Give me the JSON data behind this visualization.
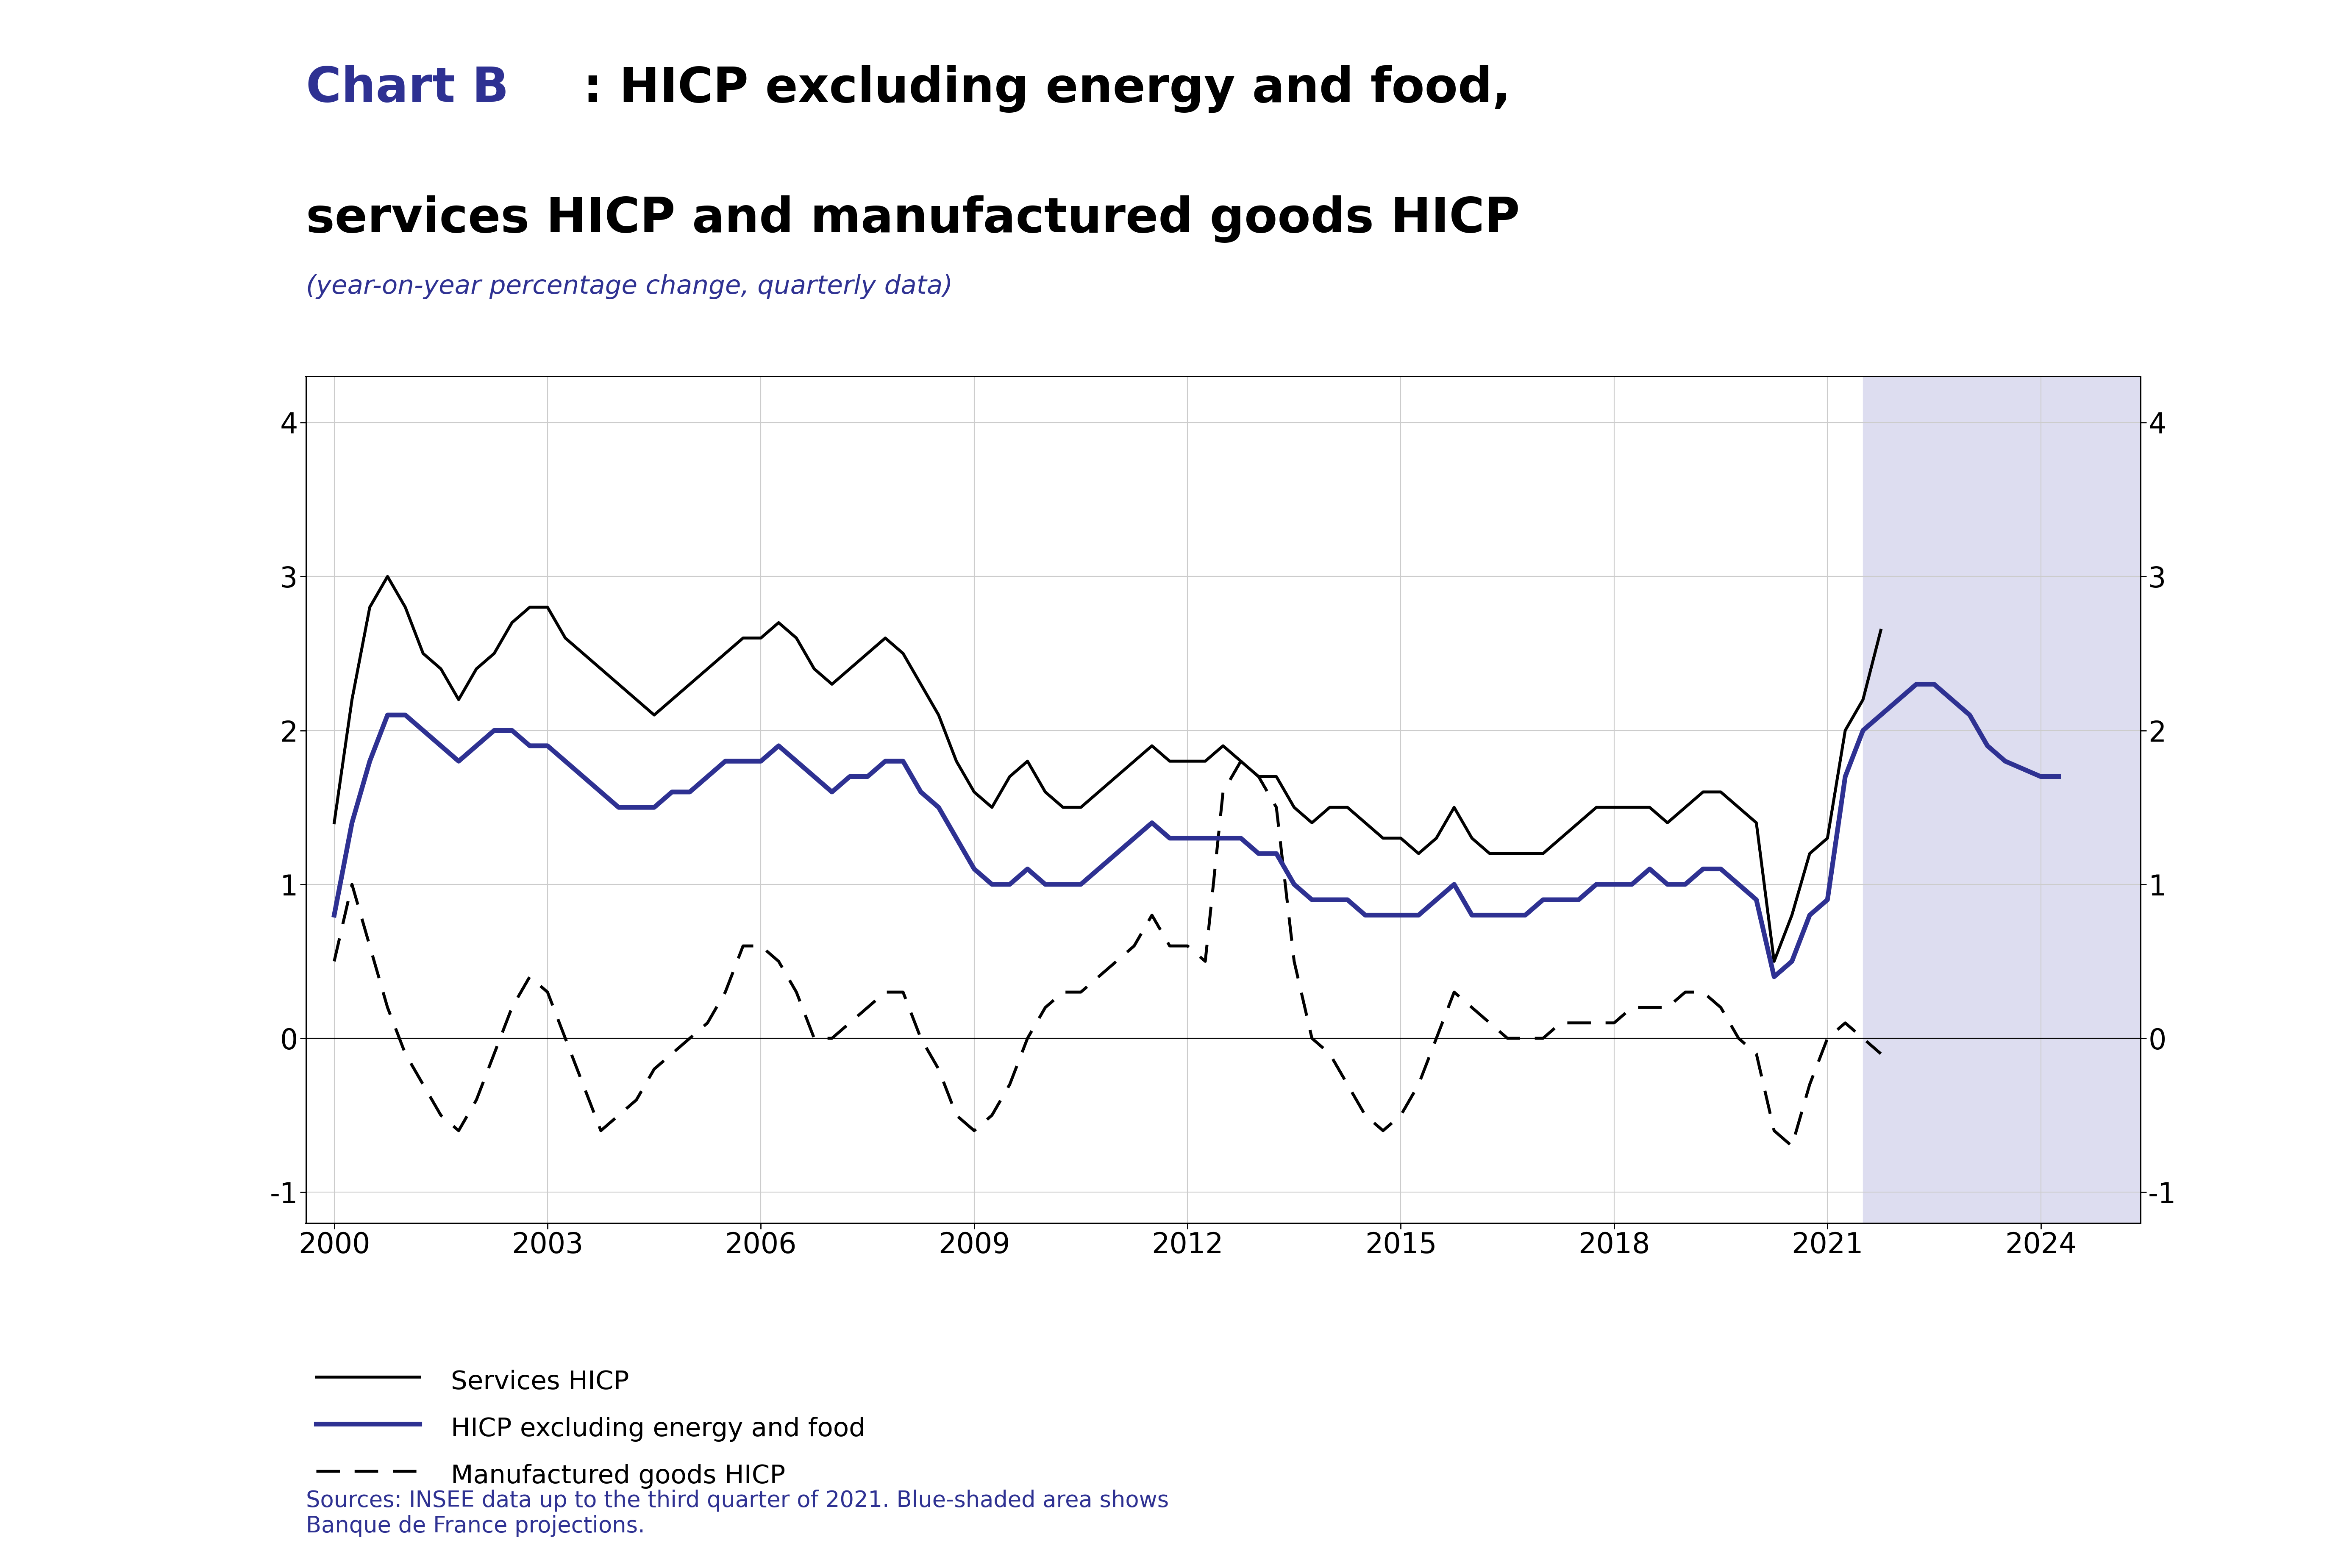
{
  "title_chartb": "Chart B",
  "title_rest": ": HICP excluding energy and food,\nservices HICP and manufactured goods HICP",
  "subtitle": "(year-on-year percentage change, quarterly data)",
  "title_color": "#2E3192",
  "text_black": "#000000",
  "subtitle_color": "#2E3192",
  "blue_color": "#2E3192",
  "background_color": "#FFFFFF",
  "plot_bg_color": "#FFFFFF",
  "shade_color": "#DDDDF0",
  "shade_start": 2021.5,
  "shade_end": 2025.5,
  "ylim": [
    -1.2,
    4.3
  ],
  "xlim_start": 1999.6,
  "xlim_end": 2025.4,
  "yticks": [
    -1,
    0,
    1,
    2,
    3,
    4
  ],
  "xtick_labels": [
    "2000",
    "2003",
    "2006",
    "2009",
    "2012",
    "2015",
    "2018",
    "2021",
    "2024"
  ],
  "xtick_positions": [
    2000,
    2003,
    2006,
    2009,
    2012,
    2015,
    2018,
    2021,
    2024
  ],
  "sources_text": "Sources: INSEE data up to the third quarter of 2021. Blue-shaded area shows\nBanque de France projections.",
  "sources_color": "#2E3192",
  "legend_labels": [
    "Services HICP",
    "HICP excluding energy and food",
    "Manufactured goods HICP"
  ],
  "services_hicp_x": [
    2000.0,
    2000.25,
    2000.5,
    2000.75,
    2001.0,
    2001.25,
    2001.5,
    2001.75,
    2002.0,
    2002.25,
    2002.5,
    2002.75,
    2003.0,
    2003.25,
    2003.5,
    2003.75,
    2004.0,
    2004.25,
    2004.5,
    2004.75,
    2005.0,
    2005.25,
    2005.5,
    2005.75,
    2006.0,
    2006.25,
    2006.5,
    2006.75,
    2007.0,
    2007.25,
    2007.5,
    2007.75,
    2008.0,
    2008.25,
    2008.5,
    2008.75,
    2009.0,
    2009.25,
    2009.5,
    2009.75,
    2010.0,
    2010.25,
    2010.5,
    2010.75,
    2011.0,
    2011.25,
    2011.5,
    2011.75,
    2012.0,
    2012.25,
    2012.5,
    2012.75,
    2013.0,
    2013.25,
    2013.5,
    2013.75,
    2014.0,
    2014.25,
    2014.5,
    2014.75,
    2015.0,
    2015.25,
    2015.5,
    2015.75,
    2016.0,
    2016.25,
    2016.5,
    2016.75,
    2017.0,
    2017.25,
    2017.5,
    2017.75,
    2018.0,
    2018.25,
    2018.5,
    2018.75,
    2019.0,
    2019.25,
    2019.5,
    2019.75,
    2020.0,
    2020.25,
    2020.5,
    2020.75,
    2021.0,
    2021.25,
    2021.5,
    2021.75
  ],
  "services_hicp_y": [
    1.4,
    2.2,
    2.8,
    3.0,
    2.8,
    2.5,
    2.4,
    2.2,
    2.4,
    2.5,
    2.7,
    2.8,
    2.8,
    2.6,
    2.5,
    2.4,
    2.3,
    2.2,
    2.1,
    2.2,
    2.3,
    2.4,
    2.5,
    2.6,
    2.6,
    2.7,
    2.6,
    2.4,
    2.3,
    2.4,
    2.5,
    2.6,
    2.5,
    2.3,
    2.1,
    1.8,
    1.6,
    1.5,
    1.7,
    1.8,
    1.6,
    1.5,
    1.5,
    1.6,
    1.7,
    1.8,
    1.9,
    1.8,
    1.8,
    1.8,
    1.9,
    1.8,
    1.7,
    1.7,
    1.5,
    1.4,
    1.5,
    1.5,
    1.4,
    1.3,
    1.3,
    1.2,
    1.3,
    1.5,
    1.3,
    1.2,
    1.2,
    1.2,
    1.2,
    1.3,
    1.4,
    1.5,
    1.5,
    1.5,
    1.5,
    1.4,
    1.5,
    1.6,
    1.6,
    1.5,
    1.4,
    0.5,
    0.8,
    1.2,
    1.3,
    2.0,
    2.2,
    2.65
  ],
  "hicp_excl_x": [
    2000.0,
    2000.25,
    2000.5,
    2000.75,
    2001.0,
    2001.25,
    2001.5,
    2001.75,
    2002.0,
    2002.25,
    2002.5,
    2002.75,
    2003.0,
    2003.25,
    2003.5,
    2003.75,
    2004.0,
    2004.25,
    2004.5,
    2004.75,
    2005.0,
    2005.25,
    2005.5,
    2005.75,
    2006.0,
    2006.25,
    2006.5,
    2006.75,
    2007.0,
    2007.25,
    2007.5,
    2007.75,
    2008.0,
    2008.25,
    2008.5,
    2008.75,
    2009.0,
    2009.25,
    2009.5,
    2009.75,
    2010.0,
    2010.25,
    2010.5,
    2010.75,
    2011.0,
    2011.25,
    2011.5,
    2011.75,
    2012.0,
    2012.25,
    2012.5,
    2012.75,
    2013.0,
    2013.25,
    2013.5,
    2013.75,
    2014.0,
    2014.25,
    2014.5,
    2014.75,
    2015.0,
    2015.25,
    2015.5,
    2015.75,
    2016.0,
    2016.25,
    2016.5,
    2016.75,
    2017.0,
    2017.25,
    2017.5,
    2017.75,
    2018.0,
    2018.25,
    2018.5,
    2018.75,
    2019.0,
    2019.25,
    2019.5,
    2019.75,
    2020.0,
    2020.25,
    2020.5,
    2020.75,
    2021.0,
    2021.25,
    2021.5,
    2021.75,
    2022.0,
    2022.25,
    2022.5,
    2022.75,
    2023.0,
    2023.25,
    2023.5,
    2023.75,
    2024.0,
    2024.25
  ],
  "hicp_excl_y": [
    0.8,
    1.4,
    1.8,
    2.1,
    2.1,
    2.0,
    1.9,
    1.8,
    1.9,
    2.0,
    2.0,
    1.9,
    1.9,
    1.8,
    1.7,
    1.6,
    1.5,
    1.5,
    1.5,
    1.6,
    1.6,
    1.7,
    1.8,
    1.8,
    1.8,
    1.9,
    1.8,
    1.7,
    1.6,
    1.7,
    1.7,
    1.8,
    1.8,
    1.6,
    1.5,
    1.3,
    1.1,
    1.0,
    1.0,
    1.1,
    1.0,
    1.0,
    1.0,
    1.1,
    1.2,
    1.3,
    1.4,
    1.3,
    1.3,
    1.3,
    1.3,
    1.3,
    1.2,
    1.2,
    1.0,
    0.9,
    0.9,
    0.9,
    0.8,
    0.8,
    0.8,
    0.8,
    0.9,
    1.0,
    0.8,
    0.8,
    0.8,
    0.8,
    0.9,
    0.9,
    0.9,
    1.0,
    1.0,
    1.0,
    1.1,
    1.0,
    1.0,
    1.1,
    1.1,
    1.0,
    0.9,
    0.4,
    0.5,
    0.8,
    0.9,
    1.7,
    2.0,
    2.1,
    2.2,
    2.3,
    2.3,
    2.2,
    2.1,
    1.9,
    1.8,
    1.75,
    1.7,
    1.7
  ],
  "manuf_hicp_x": [
    2000.0,
    2000.25,
    2000.5,
    2000.75,
    2001.0,
    2001.25,
    2001.5,
    2001.75,
    2002.0,
    2002.25,
    2002.5,
    2002.75,
    2003.0,
    2003.25,
    2003.5,
    2003.75,
    2004.0,
    2004.25,
    2004.5,
    2004.75,
    2005.0,
    2005.25,
    2005.5,
    2005.75,
    2006.0,
    2006.25,
    2006.5,
    2006.75,
    2007.0,
    2007.25,
    2007.5,
    2007.75,
    2008.0,
    2008.25,
    2008.5,
    2008.75,
    2009.0,
    2009.25,
    2009.5,
    2009.75,
    2010.0,
    2010.25,
    2010.5,
    2010.75,
    2011.0,
    2011.25,
    2011.5,
    2011.75,
    2012.0,
    2012.25,
    2012.5,
    2012.75,
    2013.0,
    2013.25,
    2013.5,
    2013.75,
    2014.0,
    2014.25,
    2014.5,
    2014.75,
    2015.0,
    2015.25,
    2015.5,
    2015.75,
    2016.0,
    2016.25,
    2016.5,
    2016.75,
    2017.0,
    2017.25,
    2017.5,
    2017.75,
    2018.0,
    2018.25,
    2018.5,
    2018.75,
    2019.0,
    2019.25,
    2019.5,
    2019.75,
    2020.0,
    2020.25,
    2020.5,
    2020.75,
    2021.0,
    2021.25,
    2021.5,
    2021.75
  ],
  "manuf_hicp_y": [
    0.5,
    1.0,
    0.6,
    0.2,
    -0.1,
    -0.3,
    -0.5,
    -0.6,
    -0.4,
    -0.1,
    0.2,
    0.4,
    0.3,
    0.0,
    -0.3,
    -0.6,
    -0.5,
    -0.4,
    -0.2,
    -0.1,
    0.0,
    0.1,
    0.3,
    0.6,
    0.6,
    0.5,
    0.3,
    0.0,
    0.0,
    0.1,
    0.2,
    0.3,
    0.3,
    0.0,
    -0.2,
    -0.5,
    -0.6,
    -0.5,
    -0.3,
    0.0,
    0.2,
    0.3,
    0.3,
    0.4,
    0.5,
    0.6,
    0.8,
    0.6,
    0.6,
    0.5,
    1.6,
    1.8,
    1.7,
    1.5,
    0.5,
    0.0,
    -0.1,
    -0.3,
    -0.5,
    -0.6,
    -0.5,
    -0.3,
    0.0,
    0.3,
    0.2,
    0.1,
    0.0,
    0.0,
    0.0,
    0.1,
    0.1,
    0.1,
    0.1,
    0.2,
    0.2,
    0.2,
    0.3,
    0.3,
    0.2,
    0.0,
    -0.1,
    -0.6,
    -0.7,
    -0.3,
    0.0,
    0.1,
    0.0,
    -0.1
  ]
}
